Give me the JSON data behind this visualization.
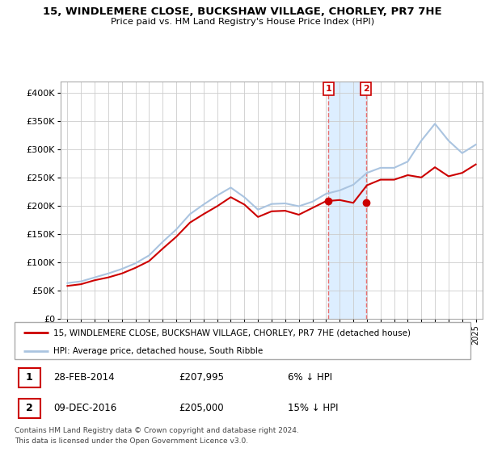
{
  "title": "15, WINDLEMERE CLOSE, BUCKSHAW VILLAGE, CHORLEY, PR7 7HE",
  "subtitle": "Price paid vs. HM Land Registry's House Price Index (HPI)",
  "legend_line1": "15, WINDLEMERE CLOSE, BUCKSHAW VILLAGE, CHORLEY, PR7 7HE (detached house)",
  "legend_line2": "HPI: Average price, detached house, South Ribble",
  "transaction1_date": "28-FEB-2014",
  "transaction1_price": "£207,995",
  "transaction1_hpi": "6% ↓ HPI",
  "transaction2_date": "09-DEC-2016",
  "transaction2_price": "£205,000",
  "transaction2_hpi": "15% ↓ HPI",
  "footnote1": "Contains HM Land Registry data © Crown copyright and database right 2024.",
  "footnote2": "This data is licensed under the Open Government Licence v3.0.",
  "ylim": [
    0,
    420000
  ],
  "yticks": [
    0,
    50000,
    100000,
    150000,
    200000,
    250000,
    300000,
    350000,
    400000
  ],
  "grid_color": "#cccccc",
  "hpi_color": "#aac4e0",
  "price_color": "#cc0000",
  "vline_color": "#e87070",
  "highlight_fill": "#ddeeff",
  "marker_color": "#cc0000",
  "years_hpi": [
    1995,
    1996,
    1997,
    1998,
    1999,
    2000,
    2001,
    2002,
    2003,
    2004,
    2005,
    2006,
    2007,
    2008,
    2009,
    2010,
    2011,
    2012,
    2013,
    2014,
    2015,
    2016,
    2017,
    2018,
    2019,
    2020,
    2021,
    2022,
    2023,
    2024,
    2025
  ],
  "hpi_values": [
    63000,
    66000,
    73000,
    80000,
    88000,
    98000,
    112000,
    136000,
    158000,
    185000,
    202000,
    218000,
    232000,
    215000,
    193000,
    203000,
    204000,
    199000,
    207000,
    221000,
    227000,
    237000,
    258000,
    267000,
    267000,
    278000,
    315000,
    345000,
    315000,
    293000,
    308000
  ],
  "years_price": [
    1995,
    1996,
    1997,
    1998,
    1999,
    2000,
    2001,
    2002,
    2003,
    2004,
    2005,
    2006,
    2007,
    2008,
    2009,
    2010,
    2011,
    2012,
    2013,
    2014,
    2015,
    2016,
    2017,
    2018,
    2019,
    2020,
    2021,
    2022,
    2023,
    2024,
    2025
  ],
  "price_values": [
    58000,
    61000,
    68000,
    73000,
    80000,
    90000,
    102000,
    124000,
    145000,
    170000,
    185000,
    199000,
    215000,
    202000,
    180000,
    190000,
    191000,
    184000,
    196000,
    207995,
    210000,
    205000,
    236000,
    246000,
    246000,
    254000,
    250000,
    268000,
    252000,
    258000,
    273000
  ],
  "transaction1_x": 2014.17,
  "transaction1_y": 207995,
  "transaction2_x": 2016.92,
  "transaction2_y": 205000,
  "highlight_x1": 2014.17,
  "highlight_x2": 2016.92,
  "xlim_left": 1994.5,
  "xlim_right": 2025.5
}
